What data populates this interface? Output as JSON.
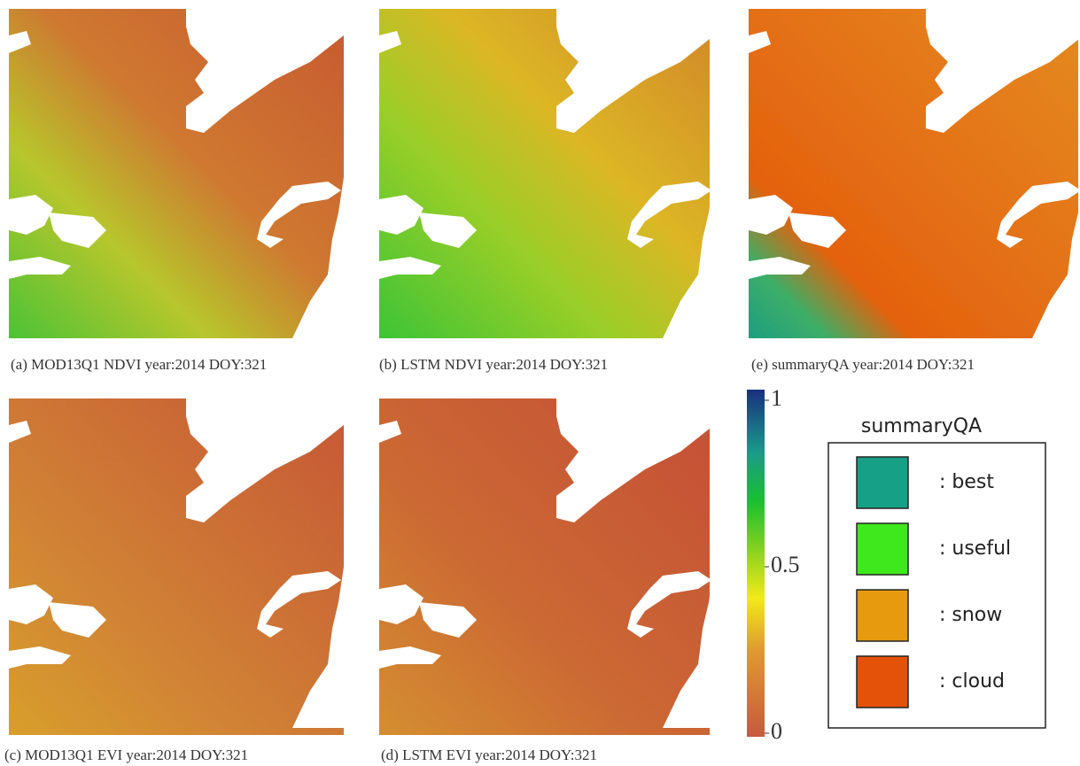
{
  "panels": [
    {
      "caption": "(a) MOD13Q1 NDVI year:2014 DOY:321"
    },
    {
      "caption": "(b) LSTM NDVI year:2014 DOY:321"
    },
    {
      "caption": "(e) summaryQA year:2014 DOY:321"
    },
    {
      "caption": "(c) MOD13Q1 EVI year:2014 DOY:321"
    },
    {
      "caption": "(d) LSTM EVI year:2014 DOY:321"
    }
  ],
  "colorbar": {
    "lim": [
      0,
      1
    ],
    "ticks": [
      0,
      0.5,
      1
    ]
  },
  "legend": {
    "title": "summaryQA",
    "items": [
      {
        "label": ": best",
        "color": "#16a085"
      },
      {
        "label": ": useful",
        "color": "#3fe81c"
      },
      {
        "label": ": snow",
        "color": "#e79a0e"
      },
      {
        "label": ": cloud",
        "color": "#e4520a"
      }
    ]
  }
}
